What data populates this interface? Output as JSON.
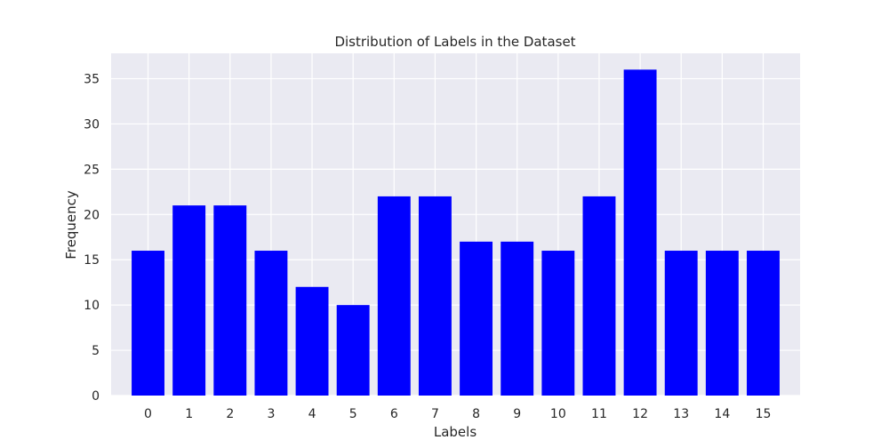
{
  "chart_data": {
    "type": "bar",
    "title": "Distribution of Labels in the Dataset",
    "xlabel": "Labels",
    "ylabel": "Frequency",
    "categories": [
      "0",
      "1",
      "2",
      "3",
      "4",
      "5",
      "6",
      "7",
      "8",
      "9",
      "10",
      "11",
      "12",
      "13",
      "14",
      "15"
    ],
    "values": [
      16,
      21,
      21,
      16,
      12,
      10,
      22,
      22,
      17,
      17,
      16,
      22,
      36,
      16,
      16,
      16
    ],
    "ylim": [
      0,
      37.8
    ],
    "yticks": [
      0,
      5,
      10,
      15,
      20,
      25,
      30,
      35
    ],
    "grid": true,
    "colors": {
      "bar": "#0000ff",
      "plot_background": "#eaeaf2",
      "grid": "#ffffff",
      "text": "#262626"
    }
  }
}
